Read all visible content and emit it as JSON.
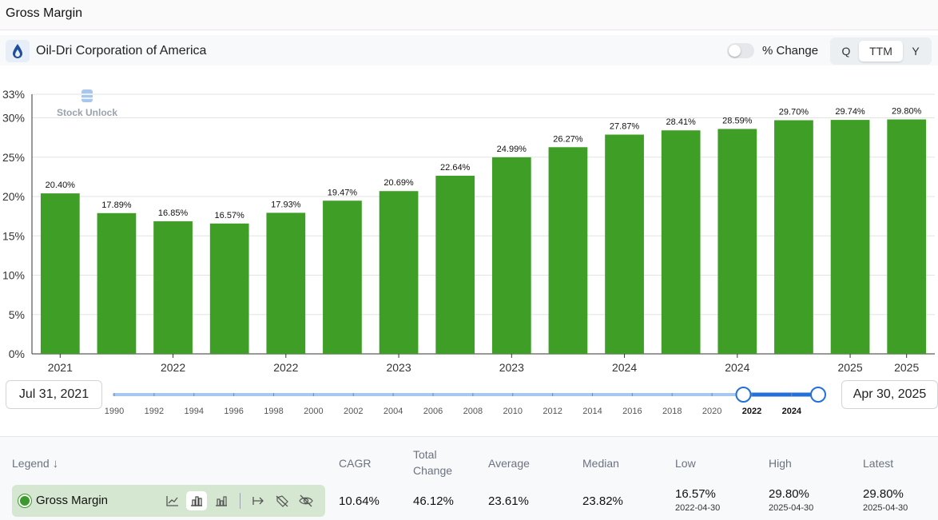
{
  "page": {
    "title": "Gross Margin",
    "company": "Oil-Dri Corporation of America",
    "pct_change_label": "% Change",
    "period_options": [
      "Q",
      "TTM",
      "Y"
    ],
    "period_selected": "TTM",
    "brand_color": "#3f9e26",
    "accent_color": "#2470d9"
  },
  "chart_data": {
    "type": "bar",
    "title": "Gross Margin",
    "watermark": "Stock Unlock",
    "categories": [
      "2021",
      "2021",
      "2022",
      "2022",
      "2022",
      "2022",
      "2023",
      "2023",
      "2023",
      "2023",
      "2024",
      "2024",
      "2024",
      "2024",
      "2025",
      "2025"
    ],
    "x_tick_labels": [
      "2021",
      "2022",
      "2022",
      "2023",
      "2023",
      "2024",
      "2024",
      "2025",
      "2025"
    ],
    "values": [
      20.4,
      17.89,
      16.85,
      16.57,
      17.93,
      19.47,
      20.69,
      22.64,
      24.99,
      26.27,
      27.87,
      28.41,
      28.59,
      29.7,
      29.74,
      29.8
    ],
    "value_labels": [
      "20.40%",
      "17.89%",
      "16.85%",
      "16.57%",
      "17.93%",
      "19.47%",
      "20.69%",
      "22.64%",
      "24.99%",
      "26.27%",
      "27.87%",
      "28.41%",
      "28.59%",
      "29.70%",
      "29.74%",
      "29.80%"
    ],
    "yticks": [
      0,
      5,
      10,
      15,
      20,
      25,
      30,
      33
    ],
    "ytick_labels": [
      "0%",
      "5%",
      "10%",
      "15%",
      "20%",
      "25%",
      "30%",
      "33%"
    ],
    "ylim": [
      0,
      33
    ],
    "grid": true,
    "xlabel": "",
    "ylabel": ""
  },
  "range": {
    "start_date": "Jul 31, 2021",
    "end_date": "Apr 30, 2025",
    "years": [
      "1990",
      "1992",
      "1994",
      "1996",
      "1998",
      "2000",
      "2002",
      "2004",
      "2006",
      "2008",
      "2010",
      "2012",
      "2014",
      "2016",
      "2018",
      "2020",
      "2022",
      "2024"
    ],
    "min_year": 1990,
    "max_year": 2025.33,
    "selected_start": 2021.58,
    "selected_end": 2025.33
  },
  "stats": {
    "legend_header": "Legend",
    "headers": {
      "cagr": "CAGR",
      "total_change": "Total Change",
      "average": "Average",
      "median": "Median",
      "low": "Low",
      "high": "High",
      "latest": "Latest"
    },
    "series_name": "Gross Margin",
    "cagr": "10.64%",
    "total_change": "46.12%",
    "average": "23.61%",
    "median": "23.82%",
    "low": "16.57%",
    "low_date": "2022-04-30",
    "high": "29.80%",
    "high_date": "2025-04-30",
    "latest": "29.80%",
    "latest_date": "2025-04-30"
  }
}
